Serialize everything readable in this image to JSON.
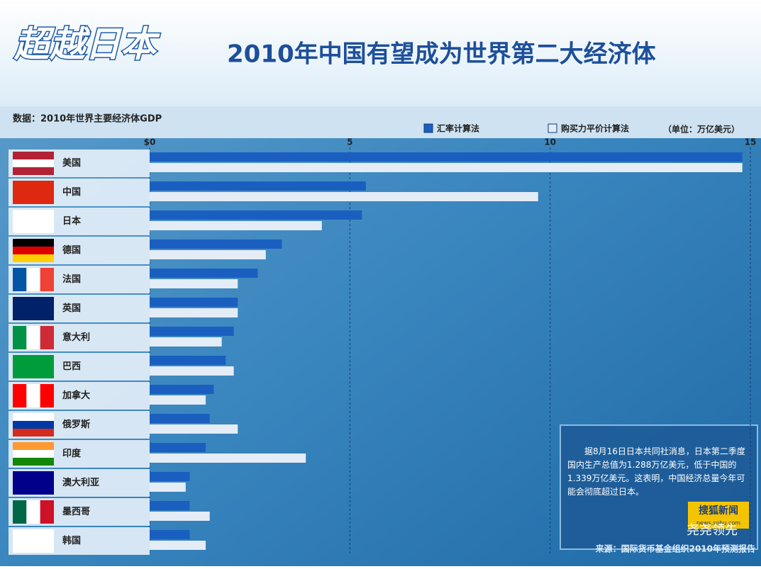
{
  "chart_data": {
    "type": "bar",
    "orientation": "horizontal",
    "title": "2010年中国有望成为世界第二大经济体",
    "banner": "超越日本",
    "subtitle": "数据：2010年世界主要经济体GDP",
    "unit": "（单位：万亿美元）",
    "categories": [
      "美国",
      "中国",
      "日本",
      "德国",
      "法国",
      "英国",
      "意大利",
      "巴西",
      "加拿大",
      "俄罗斯",
      "印度",
      "澳大利亚",
      "墨西哥",
      "韩国"
    ],
    "series": [
      {
        "name": "汇率计算法",
        "color": "#1a5fc0",
        "values": [
          14.8,
          5.4,
          5.3,
          3.3,
          2.7,
          2.2,
          2.1,
          1.9,
          1.6,
          1.5,
          1.4,
          1.0,
          1.0,
          1.0
        ]
      },
      {
        "name": "购买力平价计算法",
        "color": "#e4ecf6",
        "values": [
          14.8,
          9.7,
          4.3,
          2.9,
          2.2,
          2.2,
          1.8,
          2.1,
          1.4,
          2.2,
          3.9,
          0.9,
          1.5,
          1.4
        ]
      }
    ],
    "xlim": [
      0,
      15
    ],
    "xticks": [
      {
        "value": 0,
        "label": "$0"
      },
      5,
      10,
      15
    ],
    "grid": true,
    "annotation": "据8月16日日本共同社消息，日本第二季度国内生产总值为1.288万亿美元，低于中国的1.339万亿美元。这表明，中国经济总量今年可能会彻底超过日本。",
    "logo": "搜狐新闻",
    "logo_url": "news.sohu.com",
    "source": "来源：国际货币基金组织2010年预测报告",
    "watermark": "尧尧领先"
  }
}
